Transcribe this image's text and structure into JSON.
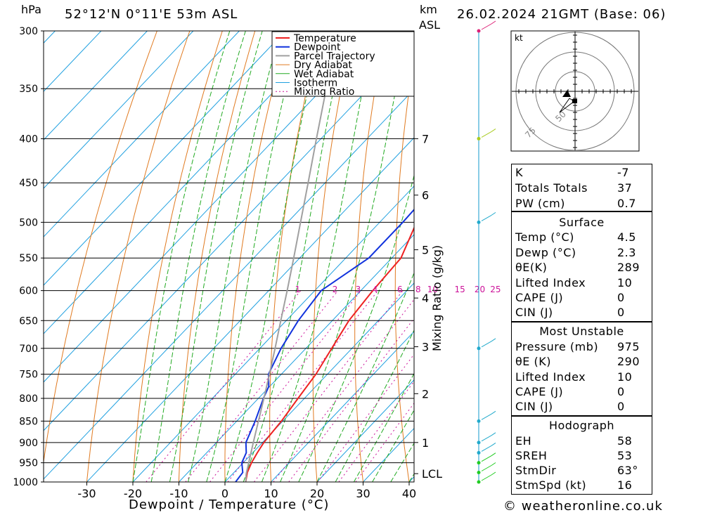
{
  "header": {
    "pressure_unit": "hPa",
    "location": "52°12'N  0°11'E  53m  ASL",
    "height_unit_line1": "km",
    "height_unit_line2": "ASL",
    "valid_time": "26.02.2024  21GMT  (Base: 06)"
  },
  "chart_data": {
    "type": "line",
    "title": "",
    "xlabel": "Dewpoint / Temperature (°C)",
    "ylabel": "hPa",
    "x_ticks": [
      -30,
      -20,
      -10,
      0,
      10,
      20,
      30,
      40
    ],
    "y_ticks": [
      300,
      350,
      400,
      450,
      500,
      550,
      600,
      650,
      700,
      750,
      800,
      850,
      900,
      950,
      1000
    ],
    "pressure_range": [
      1000,
      300
    ],
    "height_ticks_km": [
      {
        "label": "7",
        "p": 400
      },
      {
        "label": "6",
        "p": 465
      },
      {
        "label": "5",
        "p": 538
      },
      {
        "label": "4",
        "p": 612
      },
      {
        "label": "3",
        "p": 697
      },
      {
        "label": "2",
        "p": 790
      },
      {
        "label": "1",
        "p": 900
      },
      {
        "label": "LCL",
        "p": 978
      }
    ],
    "mixing_ratio_label": "Mixing Ratio (g/kg)",
    "mixing_ratio_values": [
      "1",
      "2",
      "3",
      "4",
      "6",
      "8",
      "10",
      "15",
      "20",
      "25"
    ],
    "legend": [
      "Temperature",
      "Dewpoint",
      "Parcel Trajectory",
      "Dry Adiabat",
      "Wet Adiabat",
      "Isotherm",
      "Mixing Ratio"
    ],
    "legend_position": "top-right",
    "colors": {
      "temperature": "#ee2222",
      "dewpoint": "#1133dd",
      "parcel": "#a0a0a0",
      "dry_adiabat": "#e07a20",
      "wet_adiabat": "#22aa22",
      "isotherm": "#1fa0e0",
      "mixing_ratio": "#cc1199"
    },
    "series": [
      {
        "name": "Temperature",
        "points": [
          [
            1000,
            4.5
          ],
          [
            975,
            2.9
          ],
          [
            950,
            1.8
          ],
          [
            925,
            1.0
          ],
          [
            900,
            0.3
          ],
          [
            850,
            -0.3
          ],
          [
            800,
            -1.4
          ],
          [
            750,
            -2.5
          ],
          [
            700,
            -4.4
          ],
          [
            650,
            -6.4
          ],
          [
            600,
            -7.4
          ],
          [
            550,
            -8.0
          ],
          [
            500,
            -12.0
          ],
          [
            450,
            -16.0
          ],
          [
            400,
            -20.0
          ],
          [
            350,
            -25.0
          ],
          [
            300,
            -26.0
          ]
        ]
      },
      {
        "name": "Dewpoint",
        "points": [
          [
            1000,
            2.3
          ],
          [
            975,
            1.9
          ],
          [
            950,
            -0.3
          ],
          [
            925,
            -1.4
          ],
          [
            900,
            -3.6
          ],
          [
            850,
            -6.0
          ],
          [
            800,
            -8.9
          ],
          [
            775,
            -10.2
          ],
          [
            750,
            -12.8
          ],
          [
            700,
            -15.4
          ],
          [
            650,
            -17.4
          ],
          [
            600,
            -18.6
          ],
          [
            550,
            -15.0
          ],
          [
            500,
            -15.0
          ],
          [
            450,
            -15.5
          ],
          [
            400,
            -17.0
          ],
          [
            350,
            -25.0
          ],
          [
            300,
            -32.0
          ]
        ]
      },
      {
        "name": "Parcel Trajectory",
        "points": [
          [
            1000,
            4.5
          ],
          [
            978,
            2.9
          ],
          [
            950,
            1.2
          ],
          [
            900,
            -2.0
          ],
          [
            850,
            -5.3
          ],
          [
            800,
            -8.8
          ],
          [
            750,
            -12.6
          ],
          [
            700,
            -16.7
          ],
          [
            650,
            -21.2
          ],
          [
            600,
            -26.0
          ],
          [
            550,
            -31.3
          ],
          [
            500,
            -37.2
          ],
          [
            450,
            -43.7
          ],
          [
            400,
            -51.0
          ],
          [
            350,
            -59.2
          ],
          [
            320,
            -64.5
          ]
        ]
      }
    ]
  },
  "hodograph": {
    "unit": "kt",
    "ring_labels": [
      "50",
      "75"
    ]
  },
  "indices": {
    "k_label": "K",
    "k_value": "-7",
    "tt_label": "Totals Totals",
    "tt_value": "37",
    "pw_label": "PW (cm)",
    "pw_value": "0.7"
  },
  "surface": {
    "title": "Surface",
    "temp_label": "Temp (°C)",
    "temp_value": "4.5",
    "dewp_label": "Dewp (°C)",
    "dewp_value": "2.3",
    "theta_label": "θE(K)",
    "theta_value": "289",
    "li_label": "Lifted Index",
    "li_value": "10",
    "cape_label": "CAPE (J)",
    "cape_value": "0",
    "cin_label": "CIN (J)",
    "cin_value": "0"
  },
  "most_unstable": {
    "title": "Most Unstable",
    "pressure_label": "Pressure (mb)",
    "pressure_value": "975",
    "theta_label": "θE (K)",
    "theta_value": "290",
    "li_label": "Lifted Index",
    "li_value": "10",
    "cape_label": "CAPE (J)",
    "cape_value": "0",
    "cin_label": "CIN (J)",
    "cin_value": "0"
  },
  "hodograph_table": {
    "title": "Hodograph",
    "eh_label": "EH",
    "eh_value": "58",
    "sreh_label": "SREH",
    "sreh_value": "53",
    "stmdir_label": "StmDir",
    "stmdir_value": "63°",
    "stmspd_label": "StmSpd (kt)",
    "stmspd_value": "16"
  },
  "footer": {
    "copyright": "© weatheronline.co.uk"
  }
}
